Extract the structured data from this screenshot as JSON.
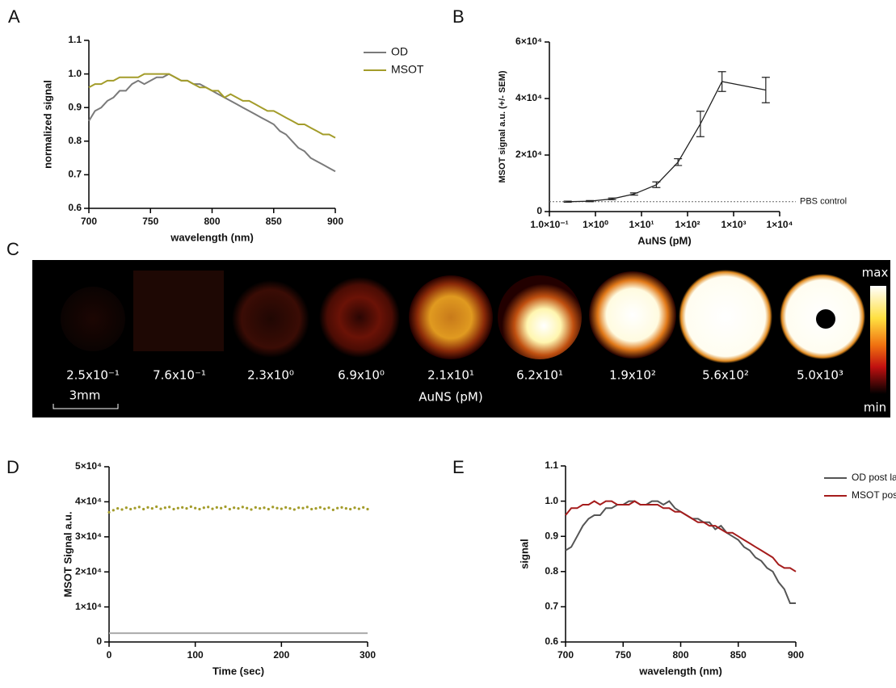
{
  "panel_labels": [
    "A",
    "B",
    "C",
    "D",
    "E"
  ],
  "chart_data": [
    {
      "type": "line",
      "xlabel": "wavelength (nm)",
      "ylabel": "normalized signal",
      "legend": "right",
      "x": [
        700,
        705,
        710,
        715,
        720,
        725,
        730,
        735,
        740,
        745,
        750,
        755,
        760,
        765,
        770,
        775,
        780,
        785,
        790,
        795,
        800,
        805,
        810,
        815,
        820,
        825,
        830,
        835,
        840,
        845,
        850,
        855,
        860,
        865,
        870,
        875,
        880,
        885,
        890,
        895,
        900
      ],
      "xlim": [
        700,
        900
      ],
      "xticks": [
        700,
        750,
        800,
        850,
        900
      ],
      "ylim": [
        0.6,
        1.1
      ],
      "yticks": [
        0.6,
        0.7,
        0.8,
        0.9,
        {
          "value": 1,
          "label": "1.0"
        },
        1.1
      ],
      "series": [
        {
          "name": "OD",
          "color": "#7a7a7a",
          "values": [
            0.86,
            0.89,
            0.9,
            0.92,
            0.93,
            0.95,
            0.95,
            0.97,
            0.98,
            0.97,
            0.98,
            0.99,
            0.99,
            1.0,
            0.99,
            0.98,
            0.98,
            0.97,
            0.97,
            0.96,
            0.95,
            0.94,
            0.93,
            0.92,
            0.91,
            0.9,
            0.89,
            0.88,
            0.87,
            0.86,
            0.85,
            0.83,
            0.82,
            0.8,
            0.78,
            0.77,
            0.75,
            0.74,
            0.73,
            0.72,
            0.71
          ]
        },
        {
          "name": "MSOT",
          "color": "#a39c2a",
          "values": [
            0.96,
            0.97,
            0.97,
            0.98,
            0.98,
            0.99,
            0.99,
            0.99,
            0.99,
            1.0,
            1.0,
            1.0,
            1.0,
            1.0,
            0.99,
            0.98,
            0.98,
            0.97,
            0.96,
            0.96,
            0.95,
            0.95,
            0.93,
            0.94,
            0.93,
            0.92,
            0.92,
            0.91,
            0.9,
            0.89,
            0.89,
            0.88,
            0.87,
            0.86,
            0.85,
            0.85,
            0.84,
            0.83,
            0.82,
            0.82,
            0.81
          ]
        }
      ]
    },
    {
      "type": "line",
      "xlabel": "AuNS (pM)",
      "ylabel": "MSOT signal a.u. (+/- SEM)",
      "xscale": "log",
      "x": [
        0.25,
        0.76,
        2.3,
        6.9,
        21,
        62,
        190,
        560,
        5000
      ],
      "xlim": [
        0.1,
        10000
      ],
      "xticks": [
        {
          "value": 0.1,
          "label": "1.0×10⁻¹"
        },
        {
          "value": 1,
          "label": "1×10⁰"
        },
        {
          "value": 10,
          "label": "1×10¹"
        },
        {
          "value": 100,
          "label": "1×10²"
        },
        {
          "value": 1000,
          "label": "1×10³"
        },
        {
          "value": 10000,
          "label": "1×10⁴"
        }
      ],
      "ylim": [
        0,
        60000
      ],
      "yticks": [
        0,
        {
          "value": 20000,
          "label": "2×10⁴"
        },
        {
          "value": 40000,
          "label": "4×10⁴"
        },
        {
          "value": 60000,
          "label": "6×10⁴"
        }
      ],
      "reference_line": {
        "value": 3500,
        "label": "PBS control"
      },
      "series": [
        {
          "color": "#222222",
          "values": [
            3500,
            3700,
            4500,
            6200,
            9500,
            17500,
            31000,
            46000,
            43000
          ],
          "errors": [
            200,
            200,
            300,
            400,
            1000,
            1200,
            4500,
            3500,
            4500
          ]
        }
      ]
    },
    {
      "type": "scatter",
      "xlabel": "Time (sec)",
      "ylabel": "MSOT Signal a.u.",
      "xlim": [
        0,
        300
      ],
      "xticks": [
        0,
        100,
        200,
        300
      ],
      "ylim": [
        0,
        50000
      ],
      "yticks": [
        0,
        {
          "value": 10000,
          "label": "1×10⁴"
        },
        {
          "value": 20000,
          "label": "2×10⁴"
        },
        {
          "value": 30000,
          "label": "3×10⁴"
        },
        {
          "value": 40000,
          "label": "4×10⁴"
        },
        {
          "value": 50000,
          "label": "5×10⁴"
        }
      ],
      "series": [
        {
          "color": "#a39c2a",
          "mode": "markers",
          "x": [
            0,
            5,
            10,
            15,
            20,
            25,
            30,
            35,
            40,
            45,
            50,
            55,
            60,
            65,
            70,
            75,
            80,
            85,
            90,
            95,
            100,
            105,
            110,
            115,
            120,
            125,
            130,
            135,
            140,
            145,
            150,
            155,
            160,
            165,
            170,
            175,
            180,
            185,
            190,
            195,
            200,
            205,
            210,
            215,
            220,
            225,
            230,
            235,
            240,
            245,
            250,
            255,
            260,
            265,
            270,
            275,
            280,
            285,
            290,
            295,
            300
          ],
          "values": [
            37000,
            37600,
            38100,
            37800,
            38300,
            37900,
            38200,
            38500,
            37900,
            38400,
            38100,
            38600,
            38000,
            38300,
            38500,
            37900,
            38200,
            38400,
            38100,
            38600,
            38200,
            37900,
            38300,
            38500,
            38000,
            38400,
            38200,
            38600,
            37900,
            38300,
            38100,
            38500,
            38200,
            37800,
            38400,
            38100,
            38300,
            37900,
            38500,
            38200,
            38000,
            38400,
            38100,
            37800,
            38300,
            38200,
            38500,
            37900,
            38100,
            38400,
            38000,
            38300,
            37700,
            38200,
            38400,
            38100,
            37900,
            38300,
            38000,
            38400,
            37900
          ]
        },
        {
          "color": "#aaaaaa",
          "mode": "line",
          "x": [
            0,
            300
          ],
          "values": [
            2500,
            2500
          ]
        }
      ]
    },
    {
      "type": "line",
      "xlabel": "wavelength (nm)",
      "ylabel": "signal",
      "legend": "right",
      "x": [
        700,
        705,
        710,
        715,
        720,
        725,
        730,
        735,
        740,
        745,
        750,
        755,
        760,
        765,
        770,
        775,
        780,
        785,
        790,
        795,
        800,
        805,
        810,
        815,
        820,
        825,
        830,
        835,
        840,
        845,
        850,
        855,
        860,
        865,
        870,
        875,
        880,
        885,
        890,
        895,
        900
      ],
      "xlim": [
        700,
        900
      ],
      "xticks": [
        700,
        750,
        800,
        850,
        900
      ],
      "ylim": [
        0.6,
        1.1
      ],
      "yticks": [
        0.6,
        0.7,
        0.8,
        0.9,
        {
          "value": 1,
          "label": "1.0"
        },
        1.1
      ],
      "series": [
        {
          "name": "OD post laser irradiation",
          "color": "#555555",
          "values": [
            0.86,
            0.87,
            0.9,
            0.93,
            0.95,
            0.96,
            0.96,
            0.98,
            0.98,
            0.99,
            0.99,
            1.0,
            1.0,
            0.99,
            0.99,
            1.0,
            1.0,
            0.99,
            1.0,
            0.98,
            0.97,
            0.96,
            0.95,
            0.95,
            0.94,
            0.94,
            0.92,
            0.93,
            0.91,
            0.9,
            0.89,
            0.87,
            0.86,
            0.84,
            0.83,
            0.81,
            0.8,
            0.77,
            0.75,
            0.71,
            0.71
          ]
        },
        {
          "name": "MSOT post laser irradiation",
          "color": "#a51c1c",
          "values": [
            0.96,
            0.98,
            0.98,
            0.99,
            0.99,
            1.0,
            0.99,
            1.0,
            1.0,
            0.99,
            0.99,
            0.99,
            1.0,
            0.99,
            0.99,
            0.99,
            0.99,
            0.98,
            0.98,
            0.97,
            0.97,
            0.96,
            0.95,
            0.94,
            0.94,
            0.93,
            0.93,
            0.92,
            0.91,
            0.91,
            0.9,
            0.89,
            0.88,
            0.87,
            0.86,
            0.85,
            0.84,
            0.82,
            0.81,
            0.81,
            0.8
          ]
        }
      ]
    }
  ],
  "image_panel": {
    "concentrations": [
      "2.5x10⁻¹",
      "7.6x10⁻¹",
      "2.3x10⁰",
      "6.9x10⁰",
      "2.1x10¹",
      "6.2x10¹",
      "1.9x10²",
      "5.6x10²",
      "5.0x10³"
    ],
    "axis_label": "AuNS (pM)",
    "scale_bar": "3mm",
    "colorbar": {
      "max": "max",
      "min": "min"
    }
  }
}
